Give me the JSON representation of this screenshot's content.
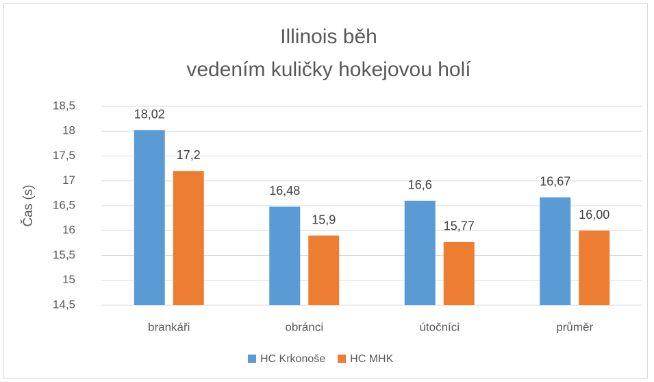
{
  "chart_data": {
    "type": "bar",
    "title": [
      "Illinois běh",
      "vedením kuličky hokejovou holí"
    ],
    "y_label": "Čas (s)",
    "categories": [
      "brankáři",
      "obránci",
      "útočníci",
      "průměr"
    ],
    "series": [
      {
        "name": "HC Krkonoše",
        "color": "#5b9bd5",
        "values": [
          18.02,
          16.48,
          16.6,
          16.67
        ],
        "value_labels": [
          "18,02",
          "16,48",
          "16,6",
          "16,67"
        ]
      },
      {
        "name": "HC MHK",
        "color": "#ed7d31",
        "values": [
          17.2,
          15.9,
          15.77,
          16.0
        ],
        "value_labels": [
          "17,2",
          "15,9",
          "15,77",
          "16,00"
        ]
      }
    ],
    "ylim": [
      14.5,
      18.5
    ],
    "yticks": [
      {
        "value": 14.5,
        "label": "14,5"
      },
      15,
      {
        "value": 15.5,
        "label": "15,5"
      },
      16,
      {
        "value": 16.5,
        "label": "16,5"
      },
      17,
      {
        "value": 17.5,
        "label": "17,5"
      },
      18,
      {
        "value": 18.5,
        "label": "18,5"
      }
    ],
    "grid": true,
    "legend": "bottom"
  }
}
